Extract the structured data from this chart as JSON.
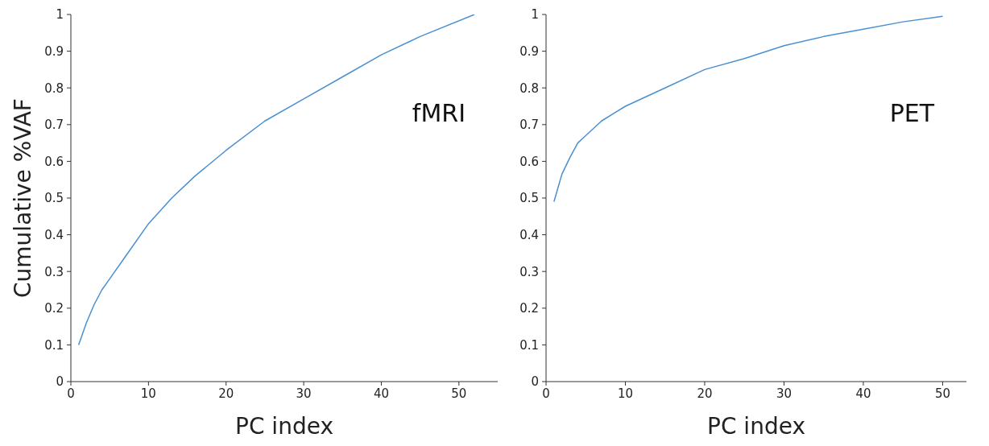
{
  "chart_data": [
    {
      "type": "line",
      "ylabel": "Cumulative %VAF",
      "xlabel": "PC index",
      "annotations": [
        "fMRI"
      ],
      "marker": "none",
      "grid": false,
      "legend": false,
      "xlim": [
        0,
        55
      ],
      "xticks": [
        0,
        10,
        20,
        30,
        40,
        50
      ],
      "ylim": [
        0,
        1
      ],
      "yticks": [
        0,
        0.1,
        0.2,
        0.3,
        0.4,
        0.5,
        0.6,
        0.7,
        0.8,
        0.9,
        1
      ],
      "series": [
        {
          "color": "#4a90d0",
          "x": [
            1,
            2,
            3,
            4,
            5,
            7,
            10,
            13,
            16,
            20,
            25,
            30,
            35,
            40,
            45,
            52
          ],
          "values": [
            0.1,
            0.16,
            0.21,
            0.25,
            0.28,
            0.34,
            0.43,
            0.5,
            0.56,
            0.63,
            0.71,
            0.77,
            0.83,
            0.89,
            0.94,
            1.0
          ]
        }
      ]
    },
    {
      "type": "line",
      "xlabel": "PC index",
      "annotations": [
        "PET"
      ],
      "marker": "none",
      "grid": false,
      "legend": false,
      "xlim": [
        0,
        53
      ],
      "xticks": [
        0,
        10,
        20,
        30,
        40,
        50
      ],
      "ylim": [
        0,
        1
      ],
      "yticks": [
        0,
        0.1,
        0.2,
        0.3,
        0.4,
        0.5,
        0.6,
        0.7,
        0.8,
        0.9,
        1
      ],
      "series": [
        {
          "color": "#4a90d0",
          "x": [
            1,
            2,
            3,
            4,
            5,
            7,
            10,
            15,
            20,
            25,
            30,
            35,
            40,
            45,
            50
          ],
          "values": [
            0.49,
            0.565,
            0.61,
            0.65,
            0.67,
            0.71,
            0.75,
            0.8,
            0.85,
            0.88,
            0.915,
            0.94,
            0.96,
            0.98,
            0.995
          ]
        }
      ]
    }
  ]
}
